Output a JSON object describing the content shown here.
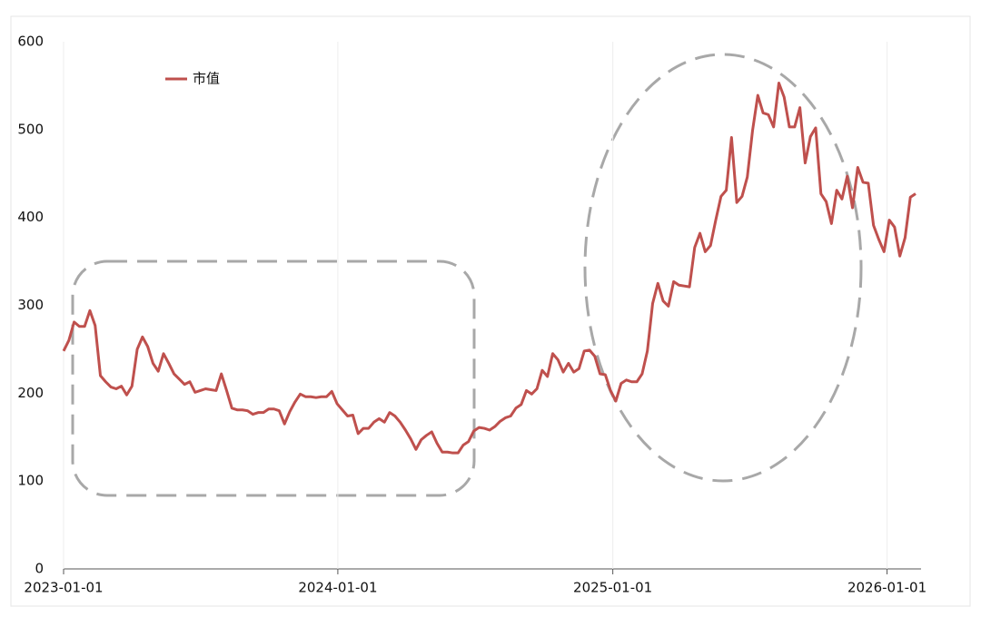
{
  "chart_data": {
    "type": "line",
    "series": [
      {
        "name": "市值",
        "color": "#bf504d",
        "values": [
          248,
          260,
          281,
          276,
          276,
          294,
          277,
          220,
          213,
          207,
          205,
          208,
          198,
          208,
          250,
          264,
          253,
          234,
          225,
          245,
          234,
          222,
          216,
          210,
          213,
          201,
          203,
          205,
          204,
          203,
          222,
          203,
          183,
          181,
          181,
          180,
          176,
          178,
          178,
          182,
          182,
          180,
          165,
          179,
          190,
          199,
          196,
          196,
          195,
          196,
          196,
          202,
          188,
          181,
          174,
          175,
          154,
          160,
          160,
          167,
          171,
          167,
          178,
          174,
          167,
          158,
          148,
          136,
          147,
          152,
          156,
          143,
          133,
          133,
          132,
          132,
          141,
          145,
          157,
          161,
          160,
          158,
          162,
          168,
          172,
          174,
          183,
          187,
          203,
          199,
          205,
          226,
          219,
          245,
          238,
          224,
          234,
          224,
          228,
          248,
          249,
          242,
          222,
          221,
          203,
          191,
          211,
          215,
          213,
          213,
          222,
          248,
          302,
          325,
          305,
          299,
          327,
          323,
          322,
          321,
          366,
          382,
          361,
          368,
          397,
          424,
          431,
          491,
          417,
          424,
          446,
          499,
          539,
          519,
          517,
          503,
          553,
          537,
          503,
          503,
          525,
          462,
          492,
          502,
          427,
          418,
          393,
          431,
          421,
          447,
          411,
          457,
          440,
          439,
          391,
          375,
          361,
          397,
          389,
          356,
          377,
          423,
          427
        ]
      }
    ],
    "x": [
      "2023-01-01",
      "2023-01-08",
      "2023-01-15",
      "2023-01-22",
      "2023-01-29",
      "2023-02-05",
      "2023-02-12",
      "2023-02-19",
      "2023-02-26",
      "2023-03-05",
      "2023-03-12",
      "2023-03-19",
      "2023-03-26",
      "2023-04-02",
      "2023-04-09",
      "2023-04-16",
      "2023-04-23",
      "2023-04-30",
      "2023-05-07",
      "2023-05-14",
      "2023-05-21",
      "2023-05-28",
      "2023-06-04",
      "2023-06-11",
      "2023-06-18",
      "2023-06-25",
      "2023-07-02",
      "2023-07-09",
      "2023-07-16",
      "2023-07-23",
      "2023-07-30",
      "2023-08-06",
      "2023-08-13",
      "2023-08-20",
      "2023-08-27",
      "2023-09-03",
      "2023-09-10",
      "2023-09-17",
      "2023-09-24",
      "2023-10-01",
      "2023-10-08",
      "2023-10-15",
      "2023-10-22",
      "2023-10-29",
      "2023-11-05",
      "2023-11-12",
      "2023-11-19",
      "2023-11-26",
      "2023-12-03",
      "2023-12-10",
      "2023-12-17",
      "2023-12-24",
      "2023-12-31",
      "2024-01-07",
      "2024-01-14",
      "2024-01-21",
      "2024-01-28",
      "2024-02-04",
      "2024-02-11",
      "2024-02-18",
      "2024-02-25",
      "2024-03-03",
      "2024-03-10",
      "2024-03-17",
      "2024-03-24",
      "2024-03-31",
      "2024-04-07",
      "2024-04-14",
      "2024-04-21",
      "2024-04-28",
      "2024-05-05",
      "2024-05-12",
      "2024-05-19",
      "2024-05-26",
      "2024-06-02",
      "2024-06-09",
      "2024-06-16",
      "2024-06-23",
      "2024-06-30",
      "2024-07-07",
      "2024-07-14",
      "2024-07-21",
      "2024-07-28",
      "2024-08-04",
      "2024-08-11",
      "2024-08-18",
      "2024-08-25",
      "2024-09-01",
      "2024-09-08",
      "2024-09-15",
      "2024-09-22",
      "2024-09-29",
      "2024-10-06",
      "2024-10-13",
      "2024-10-20",
      "2024-10-27",
      "2024-11-03",
      "2024-11-10",
      "2024-11-17",
      "2024-11-24",
      "2024-12-01",
      "2024-12-08",
      "2024-12-15",
      "2024-12-22",
      "2024-12-29",
      "2025-01-05",
      "2025-01-12",
      "2025-01-19",
      "2025-01-26",
      "2025-02-02",
      "2025-02-09",
      "2025-02-16",
      "2025-02-23",
      "2025-03-02",
      "2025-03-09",
      "2025-03-16",
      "2025-03-23",
      "2025-03-30",
      "2025-04-06",
      "2025-04-13",
      "2025-04-20",
      "2025-04-27",
      "2025-05-04",
      "2025-05-11",
      "2025-05-18",
      "2025-05-25",
      "2025-06-01",
      "2025-06-08",
      "2025-06-15",
      "2025-06-22",
      "2025-06-29",
      "2025-07-06",
      "2025-07-13",
      "2025-07-20",
      "2025-07-27",
      "2025-08-03",
      "2025-08-10",
      "2025-08-17",
      "2025-08-24",
      "2025-08-31",
      "2025-09-07",
      "2025-09-14",
      "2025-09-21",
      "2025-09-28",
      "2025-10-05",
      "2025-10-12",
      "2025-10-19",
      "2025-10-26",
      "2025-11-02",
      "2025-11-09",
      "2025-11-16",
      "2025-11-23",
      "2025-11-30",
      "2025-12-07",
      "2025-12-14",
      "2025-12-21",
      "2025-12-28",
      "2026-01-04",
      "2026-01-11",
      "2026-01-18",
      "2026-01-25",
      "2026-02-01",
      "2026-02-08"
    ],
    "xlim": [
      "2023-01-01",
      "2026-02-08"
    ],
    "xticks": [
      "2023-01-01",
      "2024-01-01",
      "2025-01-01",
      "2026-01-01"
    ],
    "ylim": [
      0,
      600
    ],
    "yticks": [
      0,
      100,
      200,
      300,
      400,
      500,
      600
    ],
    "legend": "upper left"
  }
}
